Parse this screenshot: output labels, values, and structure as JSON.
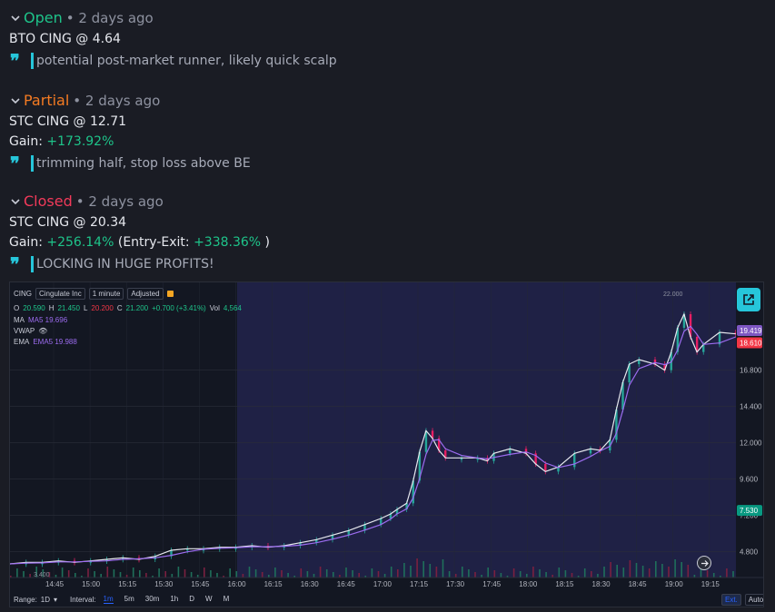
{
  "entries": [
    {
      "status": "Open",
      "status_color": "#1ec48a",
      "ago": "• 2 days ago",
      "line1": "BTO CING @ 4.64",
      "note": "potential post-market runner, likely quick scalp"
    },
    {
      "status": "Partial",
      "status_color": "#f57b22",
      "ago": "• 2 days ago",
      "line1": "STC CING @ 12.71",
      "gain_label": "Gain:",
      "gain": "+173.92%",
      "note": "trimming half, stop loss above BE"
    },
    {
      "status": "Closed",
      "status_color": "#f23a5a",
      "ago": "• 2 days ago",
      "line1": "STC CING @ 20.34",
      "gain_label": "Gain:",
      "gain": "+256.14%",
      "extra_open": "(Entry-Exit:",
      "extra_val": "+338.36%",
      "extra_close": ")",
      "note": "LOCKING IN HUGE PROFITS!"
    }
  ],
  "chart": {
    "symbol": "CING",
    "name": "Cingulate Inc",
    "interval": "1 minute",
    "adjust": "Adjusted",
    "ohlc": {
      "o_label": "O",
      "o": "20.590",
      "h_label": "H",
      "h": "21.450",
      "l_label": "L",
      "l": "20.200",
      "c_label": "C",
      "c": "21.200",
      "chg": "+0.700 (+3.41%)",
      "vol_label": "Vol",
      "vol": "4,564"
    },
    "ind_ma": "MA",
    "ind_ma_val": "MA5 19.696",
    "ind_vwap": "VWAP",
    "ind_ema": "EMA",
    "ind_ema_val": "EMA5 19.988",
    "y_ticks": [
      "16.800",
      "14.400",
      "12.000",
      "9.600",
      "7.200",
      "4.800"
    ],
    "y_badges": [
      {
        "v": "19.419",
        "color": "#7e57c2"
      },
      {
        "v": "18.610",
        "color": "#f23645"
      },
      {
        "v": "7.530",
        "color": "#089981"
      }
    ],
    "hi_label": "22.000",
    "lo_label": "3.400",
    "x_ticks": [
      "14:45",
      "15:00",
      "15:15",
      "15:30",
      "15:45",
      "16:00",
      "16:15",
      "16:30",
      "16:45",
      "17:00",
      "17:15",
      "17:30",
      "17:45",
      "18:00",
      "18:15",
      "18:30",
      "18:45",
      "19:00",
      "19:15"
    ],
    "range_label": "Range:",
    "range_val": "1D",
    "interval_label": "Interval:",
    "intervals": [
      "1m",
      "5m",
      "30m",
      "1h",
      "D",
      "W",
      "M"
    ],
    "ext": "Ext.",
    "auto": "Auto",
    "price_path": [
      [
        0,
        4.0
      ],
      [
        5,
        4.1
      ],
      [
        10,
        4.1
      ],
      [
        15,
        4.2
      ],
      [
        20,
        4.1
      ],
      [
        25,
        4.2
      ],
      [
        30,
        4.3
      ],
      [
        35,
        4.4
      ],
      [
        40,
        4.3
      ],
      [
        45,
        4.5
      ],
      [
        50,
        4.9
      ],
      [
        55,
        5.0
      ],
      [
        60,
        5.0
      ],
      [
        65,
        5.1
      ],
      [
        70,
        5.1
      ],
      [
        75,
        5.2
      ],
      [
        80,
        5.1
      ],
      [
        85,
        5.2
      ],
      [
        90,
        5.4
      ],
      [
        95,
        5.6
      ],
      [
        100,
        5.9
      ],
      [
        105,
        6.2
      ],
      [
        110,
        6.6
      ],
      [
        115,
        7.0
      ],
      [
        118,
        7.3
      ],
      [
        120,
        7.6
      ],
      [
        123,
        8.0
      ],
      [
        125,
        9.5
      ],
      [
        127,
        11.4
      ],
      [
        129,
        12.8
      ],
      [
        131,
        12.3
      ],
      [
        133,
        11.5
      ],
      [
        135,
        11.0
      ],
      [
        140,
        11.0
      ],
      [
        145,
        11.0
      ],
      [
        148,
        10.8
      ],
      [
        150,
        11.3
      ],
      [
        155,
        11.6
      ],
      [
        160,
        11.3
      ],
      [
        163,
        10.6
      ],
      [
        166,
        10.1
      ],
      [
        170,
        10.4
      ],
      [
        175,
        11.3
      ],
      [
        180,
        11.6
      ],
      [
        183,
        11.5
      ],
      [
        186,
        12.2
      ],
      [
        188,
        14.2
      ],
      [
        190,
        16.0
      ],
      [
        192,
        17.2
      ],
      [
        195,
        17.5
      ],
      [
        200,
        17.2
      ],
      [
        203,
        16.8
      ],
      [
        205,
        18.0
      ],
      [
        207,
        19.6
      ],
      [
        209,
        20.5
      ],
      [
        211,
        19.0
      ],
      [
        213,
        18.0
      ],
      [
        215,
        18.5
      ],
      [
        220,
        19.3
      ],
      [
        225,
        19.2
      ]
    ]
  }
}
